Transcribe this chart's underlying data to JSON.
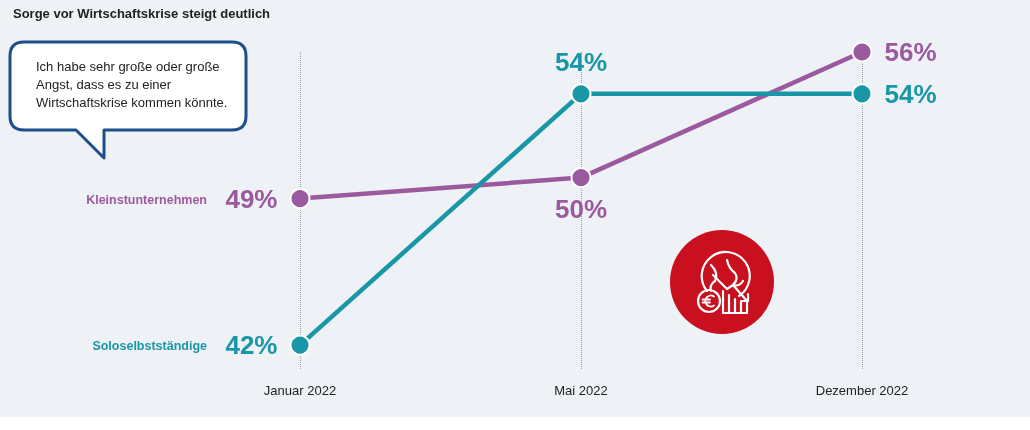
{
  "chart_data": {
    "type": "line",
    "title": "Sorge vor Wirtschaftskrise steigt deutlich",
    "annotations": [
      "Ich habe sehr große oder große Angst, dass es zu einer Wirtschaftskrise kommen könnte."
    ],
    "categories": [
      "Januar 2022",
      "Mai 2022",
      "Dezember 2022"
    ],
    "series": [
      {
        "name": "Kleinstunternehmen",
        "color": "#9b5a9f",
        "values": [
          49,
          50,
          56
        ],
        "value_labels": [
          "49%",
          "50%",
          "56%"
        ]
      },
      {
        "name": "Soloselbstständige",
        "color": "#1a97a7",
        "values": [
          42,
          54,
          54
        ],
        "value_labels": [
          "42%",
          "54%",
          "54%"
        ]
      }
    ],
    "grid": "x",
    "marker": "circle",
    "line_style": "solid",
    "tick_labels": "x"
  }
}
